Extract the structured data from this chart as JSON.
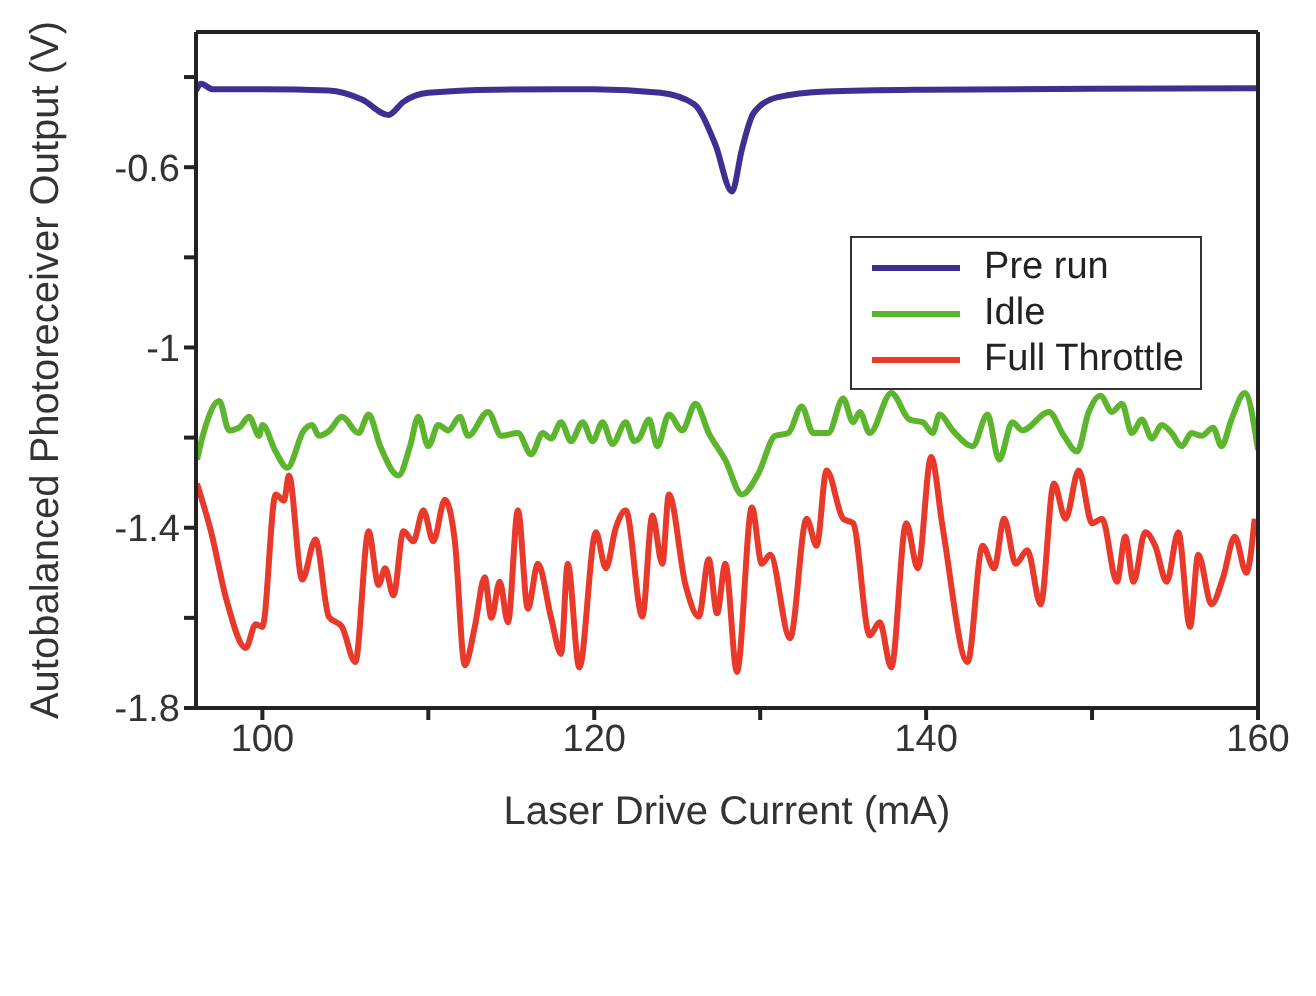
{
  "chart_data": {
    "type": "line",
    "xlabel": "Laser Drive Current (mA)",
    "ylabel": "Autobalanced Photoreceiver Output (V)",
    "xlim": [
      96,
      160
    ],
    "xticks": [
      100,
      {
        "value": 110,
        "label": null
      },
      120,
      {
        "value": 130,
        "label": null
      },
      140,
      {
        "value": 150,
        "label": null
      },
      160
    ],
    "ylim": [
      -1.8,
      -0.3
    ],
    "yticks": [
      -1.8,
      {
        "value": -1.6,
        "label": null
      },
      -1.4,
      {
        "value": -1.2,
        "label": null
      },
      -1,
      {
        "value": -0.8,
        "label": null
      },
      -0.6,
      {
        "value": -0.4,
        "label": null
      }
    ],
    "legend": "top right",
    "marker": "none",
    "line_style": "solid",
    "series": [
      {
        "name": "Pre run",
        "color": "#3f2f93",
        "x": [
          96,
          96.3,
          97,
          100,
          104,
          106,
          107.6,
          108.5,
          110,
          114,
          120,
          124,
          126,
          127.3,
          128.3,
          128.9,
          129.6,
          131,
          134,
          140,
          150,
          160
        ],
        "values": [
          -0.43,
          -0.415,
          -0.427,
          -0.427,
          -0.43,
          -0.45,
          -0.484,
          -0.455,
          -0.435,
          -0.428,
          -0.427,
          -0.435,
          -0.46,
          -0.55,
          -0.654,
          -0.56,
          -0.48,
          -0.445,
          -0.432,
          -0.428,
          -0.426,
          -0.425
        ]
      },
      {
        "name": "Idle",
        "color": "#5db52e",
        "x": [
          96.06,
          96.5,
          97.4,
          98,
          98.6,
          99.2,
          99.8,
          100,
          100.8,
          101.5,
          102.5,
          103,
          103.4,
          104,
          104.8,
          105.8,
          106.4,
          107.1,
          108.2,
          108.9,
          109.4,
          110,
          110.6,
          111.2,
          111.9,
          112.4,
          113.6,
          114.4,
          115.4,
          116.2,
          116.9,
          117.4,
          118,
          118.6,
          119.3,
          119.9,
          120.5,
          121.1,
          121.9,
          122.4,
          122.7,
          123.3,
          123.8,
          124.5,
          125.3,
          126.1,
          126.9,
          127.9,
          128.9,
          129.9,
          130.9,
          131.7,
          132.5,
          133.2,
          134.1,
          135,
          135.6,
          136,
          136.6,
          137.9,
          139,
          139.8,
          140.4,
          140.8,
          141.6,
          142.8,
          143.7,
          144.4,
          145.2,
          145.8,
          147.4,
          148.3,
          149.1,
          149.8,
          150.5,
          151.2,
          151.8,
          152.4,
          153,
          153.6,
          154.2,
          154.8,
          155.4,
          156,
          156.6,
          157.3,
          157.8,
          158.4,
          159.2,
          160
        ],
        "values": [
          -1.249,
          -1.184,
          -1.119,
          -1.184,
          -1.178,
          -1.154,
          -1.196,
          -1.172,
          -1.231,
          -1.267,
          -1.184,
          -1.172,
          -1.196,
          -1.186,
          -1.154,
          -1.19,
          -1.149,
          -1.219,
          -1.284,
          -1.219,
          -1.154,
          -1.219,
          -1.172,
          -1.184,
          -1.154,
          -1.196,
          -1.143,
          -1.196,
          -1.19,
          -1.237,
          -1.19,
          -1.202,
          -1.166,
          -1.208,
          -1.166,
          -1.208,
          -1.166,
          -1.214,
          -1.166,
          -1.208,
          -1.202,
          -1.16,
          -1.219,
          -1.149,
          -1.184,
          -1.125,
          -1.19,
          -1.25,
          -1.326,
          -1.279,
          -1.196,
          -1.19,
          -1.131,
          -1.19,
          -1.19,
          -1.113,
          -1.166,
          -1.143,
          -1.19,
          -1.101,
          -1.16,
          -1.166,
          -1.19,
          -1.149,
          -1.184,
          -1.219,
          -1.149,
          -1.249,
          -1.166,
          -1.184,
          -1.143,
          -1.196,
          -1.231,
          -1.143,
          -1.107,
          -1.143,
          -1.125,
          -1.19,
          -1.16,
          -1.202,
          -1.172,
          -1.19,
          -1.219,
          -1.19,
          -1.196,
          -1.178,
          -1.219,
          -1.16,
          -1.101,
          -1.227
        ]
      },
      {
        "name": "Full Throttle",
        "color": "#e8392a",
        "x": [
          96.06,
          96.9,
          97.85,
          99,
          99.6,
          100,
          100.8,
          101.3,
          101.6,
          102.4,
          103.2,
          104,
          104.8,
          105.6,
          106.4,
          107,
          107.4,
          107.9,
          108.5,
          109.1,
          109.7,
          110.3,
          111,
          111.6,
          112.2,
          112.8,
          113.4,
          113.8,
          114.3,
          114.8,
          115.4,
          116,
          116.6,
          117.4,
          118,
          118.4,
          119.1,
          120.1,
          120.7,
          121.3,
          121.9,
          122.9,
          123.5,
          124.1,
          124.5,
          125.5,
          126.3,
          126.9,
          127.4,
          127.9,
          128.6,
          129.5,
          130.1,
          130.6,
          131.8,
          132.8,
          133.4,
          134,
          135,
          135.6,
          136.6,
          137.2,
          137.9,
          138.8,
          139.5,
          140.3,
          141,
          142.5,
          143.4,
          144.1,
          144.7,
          145.4,
          146.1,
          146.9,
          147.7,
          148.4,
          149.2,
          150,
          150.6,
          151.5,
          152,
          152.5,
          153.2,
          153.8,
          154.5,
          155.2,
          155.9,
          156.4,
          157.2,
          157.9,
          158.6,
          159.3,
          159.8
        ],
        "values": [
          -1.302,
          -1.408,
          -1.562,
          -1.667,
          -1.614,
          -1.62,
          -1.326,
          -1.34,
          -1.284,
          -1.515,
          -1.426,
          -1.597,
          -1.62,
          -1.698,
          -1.408,
          -1.527,
          -1.49,
          -1.55,
          -1.408,
          -1.43,
          -1.361,
          -1.43,
          -1.338,
          -1.43,
          -1.705,
          -1.62,
          -1.51,
          -1.6,
          -1.52,
          -1.61,
          -1.361,
          -1.58,
          -1.48,
          -1.6,
          -1.68,
          -1.48,
          -1.71,
          -1.41,
          -1.49,
          -1.4,
          -1.361,
          -1.597,
          -1.373,
          -1.48,
          -1.326,
          -1.527,
          -1.597,
          -1.47,
          -1.59,
          -1.48,
          -1.72,
          -1.355,
          -1.48,
          -1.46,
          -1.645,
          -1.38,
          -1.44,
          -1.273,
          -1.38,
          -1.39,
          -1.639,
          -1.61,
          -1.71,
          -1.39,
          -1.49,
          -1.243,
          -1.4,
          -1.698,
          -1.44,
          -1.49,
          -1.38,
          -1.48,
          -1.45,
          -1.57,
          -1.302,
          -1.38,
          -1.273,
          -1.39,
          -1.38,
          -1.52,
          -1.42,
          -1.52,
          -1.41,
          -1.44,
          -1.52,
          -1.41,
          -1.62,
          -1.46,
          -1.57,
          -1.51,
          -1.42,
          -1.5,
          -1.38
        ]
      }
    ]
  }
}
